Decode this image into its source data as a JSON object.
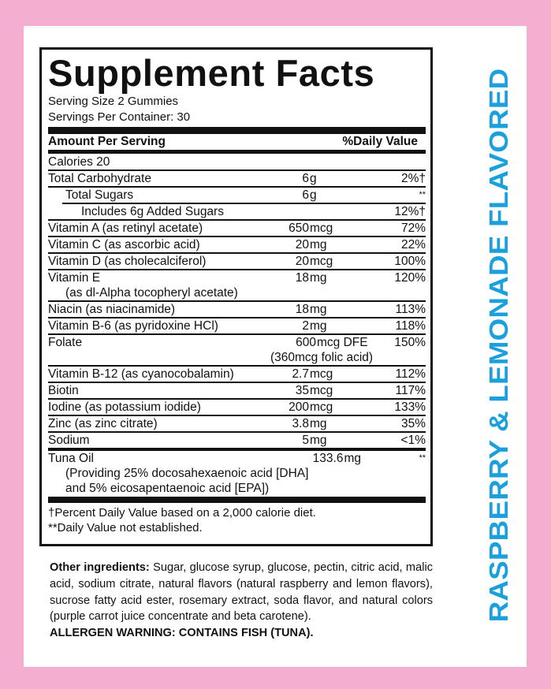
{
  "label": {
    "title": "Supplement Facts",
    "serving_size": "Serving Size 2 Gummies",
    "servings_per_container": "Servings Per Container: 30",
    "header_left": "Amount Per Serving",
    "header_right": "%Daily Value",
    "calories": "Calories  20",
    "rows": [
      {
        "name": "Total Carbohydrate",
        "num": "6",
        "unit": "g",
        "dv": "2%†"
      },
      {
        "name": "Total Sugars",
        "num": "6",
        "unit": "g",
        "dv": "**"
      },
      {
        "name": "Includes 6g Added Sugars",
        "num": "",
        "unit": "",
        "dv": "12%†"
      },
      {
        "name": "Vitamin A (as retinyl acetate)",
        "num": "650",
        "unit": "mcg",
        "dv": "72%"
      },
      {
        "name": "Vitamin C (as ascorbic acid)",
        "num": "20",
        "unit": "mg",
        "dv": "22%"
      },
      {
        "name": "Vitamin D (as cholecalciferol)",
        "num": "20",
        "unit": "mcg",
        "dv": "100%"
      },
      {
        "name": "Vitamin E",
        "name2": "(as dl-Alpha tocopheryl acetate)",
        "num": "18",
        "unit": "mg",
        "dv": "120%"
      },
      {
        "name": "Niacin (as niacinamide)",
        "num": "18",
        "unit": "mg",
        "dv": "113%"
      },
      {
        "name": "Vitamin B-6 (as pyridoxine HCl)",
        "num": "2",
        "unit": "mg",
        "dv": "118%"
      },
      {
        "name": "Folate",
        "num": "600",
        "unit": "mcg DFE",
        "dv": "150%",
        "amt2": "(360mcg folic acid)"
      },
      {
        "name": "Vitamin B-12 (as cyanocobalamin)",
        "num": "2.7",
        "unit": "mcg",
        "dv": "112%"
      },
      {
        "name": "Biotin",
        "num": "35",
        "unit": "mcg",
        "dv": "117%"
      },
      {
        "name": "Iodine (as potassium iodide)",
        "num": "200",
        "unit": "mcg",
        "dv": "133%"
      },
      {
        "name": "Zinc (as zinc citrate)",
        "num": "3.8",
        "unit": "mg",
        "dv": "35%"
      },
      {
        "name": "Sodium",
        "num": "5",
        "unit": "mg",
        "dv": "<1%"
      },
      {
        "name": "Tuna Oil",
        "name2": "(Providing 25% docosahexaenoic acid [DHA]",
        "name3": "and 5% eicosapentaenoic acid [EPA])",
        "num": "133.6",
        "unit": "mg",
        "dv": "**"
      }
    ],
    "footnote1": "†Percent Daily Value based on a 2,000 calorie diet.",
    "footnote2": "**Daily Value not established."
  },
  "other_ingredients": {
    "label": "Other ingredients:",
    "text": " Sugar, glucose syrup, glucose, pectin, citric acid, malic acid, sodium citrate, natural flavors (natural raspberry and lemon flavors), sucrose fatty acid ester, rosemary extract, soda flavor, and natural colors (purple carrot juice concentrate and beta carotene).",
    "allergen": "ALLERGEN WARNING: CONTAINS FISH (TUNA)."
  },
  "side_text": "RASPBERRY & LEMONADE FLAVORED",
  "colors": {
    "background": "#f4aed0",
    "side_text": "#1aa0dc"
  }
}
